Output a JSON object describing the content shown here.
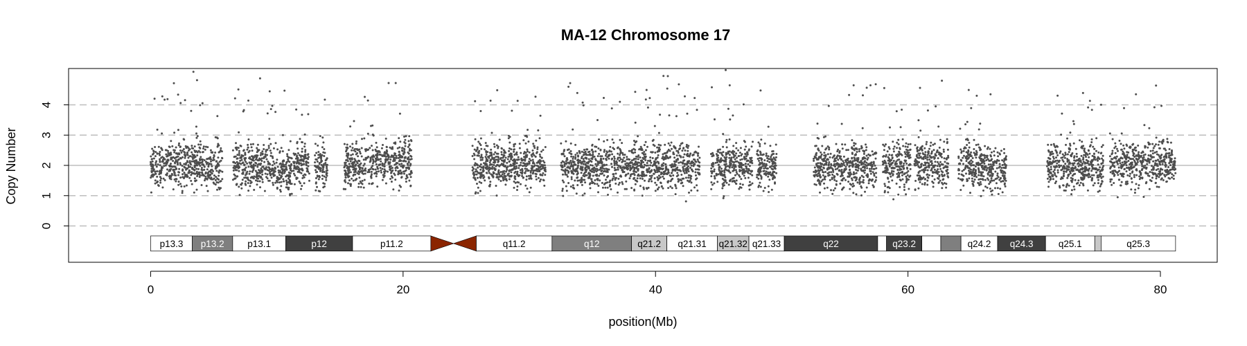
{
  "chart_data": {
    "type": "scatter",
    "title": "MA-12  Chromosome 17",
    "xlabel": "position(Mb)",
    "ylabel": "Copy Number",
    "xlim": [
      -6.5,
      84.5
    ],
    "ylim": [
      -1.2,
      5.2
    ],
    "x_ticks": [
      0,
      20,
      40,
      60,
      80
    ],
    "x_tick_labels": [
      "0",
      "20",
      "40",
      "60",
      "80"
    ],
    "y_ticks": [
      0,
      1,
      2,
      3,
      4
    ],
    "y_tick_labels": [
      "0",
      "1",
      "2",
      "3",
      "4"
    ],
    "dashed_gridlines_y": [
      0,
      1,
      3,
      4
    ],
    "solid_reference_y": 2,
    "point_color": "#4d4d4d",
    "point_note": "dense cloud of copy-number probes; baseline near 2 with spread roughly 0.5–4.9",
    "point_clusters": [
      {
        "x": [
          0.0,
          3.3
        ],
        "center": 2.0
      },
      {
        "x": [
          3.3,
          5.7
        ],
        "center": 2.0
      },
      {
        "x": [
          6.5,
          9.9
        ],
        "center": 2.0
      },
      {
        "x": [
          9.9,
          11.2
        ],
        "center": 1.8
      },
      {
        "x": [
          11.3,
          12.6
        ],
        "center": 2.1
      },
      {
        "x": [
          13.0,
          14.0
        ],
        "center": 2.0
      },
      {
        "x": [
          15.3,
          17.5
        ],
        "center": 2.0
      },
      {
        "x": [
          17.5,
          20.7
        ],
        "center": 2.1
      },
      {
        "x": [
          25.5,
          31.3
        ],
        "center": 2.0
      },
      {
        "x": [
          32.5,
          37.5
        ],
        "center": 2.0
      },
      {
        "x": [
          37.5,
          39.5
        ],
        "center": 2.0
      },
      {
        "x": [
          39.5,
          43.5
        ],
        "center": 2.0
      },
      {
        "x": [
          44.4,
          45.6
        ],
        "center": 1.9
      },
      {
        "x": [
          45.6,
          47.7
        ],
        "center": 2.0
      },
      {
        "x": [
          48.0,
          49.6
        ],
        "center": 2.0
      },
      {
        "x": [
          52.5,
          57.5
        ],
        "center": 2.0
      },
      {
        "x": [
          58.0,
          60.2
        ],
        "center": 2.0
      },
      {
        "x": [
          60.5,
          63.2
        ],
        "center": 2.0
      },
      {
        "x": [
          64.0,
          66.5
        ],
        "center": 2.0
      },
      {
        "x": [
          66.5,
          67.8
        ],
        "center": 1.9
      },
      {
        "x": [
          71.0,
          75.5
        ],
        "center": 2.0
      },
      {
        "x": [
          76.0,
          78.3
        ],
        "center": 2.0
      },
      {
        "x": [
          78.3,
          81.2
        ],
        "center": 2.0
      }
    ],
    "ideogram": {
      "y_range": [
        -0.83,
        -0.33
      ],
      "bands": [
        {
          "name": "p13.3",
          "start": 0.0,
          "end": 3.3,
          "stain": "gneg",
          "color": "#ffffff"
        },
        {
          "name": "p13.2",
          "start": 3.3,
          "end": 6.5,
          "stain": "gpos50",
          "color": "#7f7f7f"
        },
        {
          "name": "p13.1",
          "start": 6.5,
          "end": 10.7,
          "stain": "gneg",
          "color": "#ffffff"
        },
        {
          "name": "p12",
          "start": 10.7,
          "end": 16.0,
          "stain": "gpos75",
          "color": "#404040"
        },
        {
          "name": "p11.2",
          "start": 16.0,
          "end": 22.2,
          "stain": "gneg",
          "color": "#ffffff"
        },
        {
          "name": "",
          "start": 22.2,
          "end": 24.0,
          "stain": "acen",
          "color": "#8b2500"
        },
        {
          "name": "",
          "start": 24.0,
          "end": 25.8,
          "stain": "acen",
          "color": "#8b2500"
        },
        {
          "name": "q11.2",
          "start": 25.8,
          "end": 31.8,
          "stain": "gneg",
          "color": "#ffffff"
        },
        {
          "name": "q12",
          "start": 31.8,
          "end": 38.1,
          "stain": "gpos50",
          "color": "#7f7f7f"
        },
        {
          "name": "q21.2",
          "start": 38.1,
          "end": 40.9,
          "stain": "gpos25",
          "color": "#c8c8c8"
        },
        {
          "name": "q21.31",
          "start": 40.9,
          "end": 44.9,
          "stain": "gneg",
          "color": "#ffffff"
        },
        {
          "name": "q21.32",
          "start": 44.9,
          "end": 47.4,
          "stain": "gpos25",
          "color": "#c8c8c8"
        },
        {
          "name": "q21.33",
          "start": 47.4,
          "end": 50.2,
          "stain": "gneg",
          "color": "#ffffff"
        },
        {
          "name": "q22",
          "start": 50.2,
          "end": 57.6,
          "stain": "gpos75",
          "color": "#404040"
        },
        {
          "name": "",
          "start": 57.6,
          "end": 58.3,
          "stain": "gneg",
          "color": "#ffffff"
        },
        {
          "name": "q23.2",
          "start": 58.3,
          "end": 61.1,
          "stain": "gpos75",
          "color": "#404040"
        },
        {
          "name": "",
          "start": 61.1,
          "end": 62.6,
          "stain": "gneg",
          "color": "#ffffff"
        },
        {
          "name": "",
          "start": 62.6,
          "end": 64.2,
          "stain": "gpos50",
          "color": "#7f7f7f"
        },
        {
          "name": "q24.2",
          "start": 64.2,
          "end": 67.1,
          "stain": "gneg",
          "color": "#ffffff"
        },
        {
          "name": "q24.3",
          "start": 67.1,
          "end": 70.9,
          "stain": "gpos75",
          "color": "#404040"
        },
        {
          "name": "q25.1",
          "start": 70.9,
          "end": 74.8,
          "stain": "gneg",
          "color": "#ffffff"
        },
        {
          "name": "",
          "start": 74.8,
          "end": 75.3,
          "stain": "gpos25",
          "color": "#c8c8c8"
        },
        {
          "name": "q25.3",
          "start": 75.3,
          "end": 81.2,
          "stain": "gneg",
          "color": "#ffffff"
        }
      ]
    }
  }
}
